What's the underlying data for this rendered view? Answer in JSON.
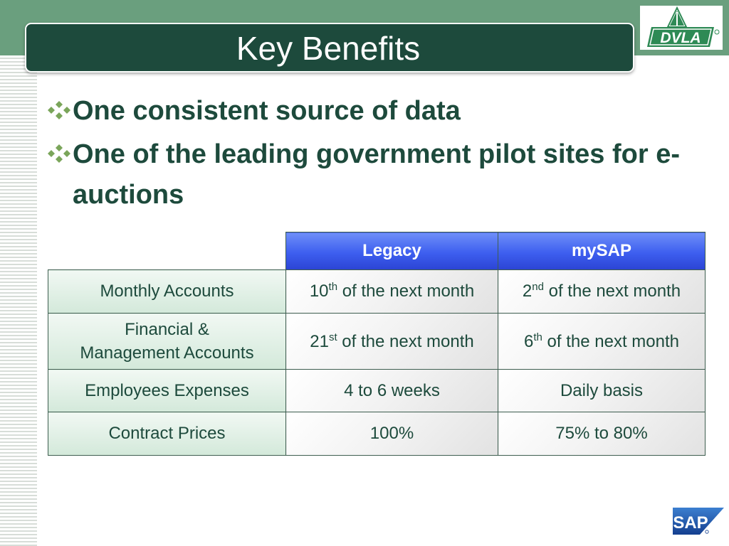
{
  "slide": {
    "title": "Key Benefits",
    "bullets": [
      "One consistent source of data",
      "One of the leading government pilot sites for e-auctions"
    ]
  },
  "logos": {
    "dvla_text": "DVLA",
    "sap_text": "SAP"
  },
  "colors": {
    "title_bar": "#1d4a3c",
    "top_band": "#6a9f7e",
    "text_green": "#1d4a3c",
    "header_blue": "#3d5eef",
    "row_head_green": "#d3e9da"
  },
  "table": {
    "headers": [
      "Legacy",
      "mySAP"
    ],
    "rows": [
      {
        "label": "Monthly Accounts",
        "legacy": {
          "num": "10",
          "sup": "th",
          "rest": " of the next month"
        },
        "mysap": {
          "num": "2",
          "sup": "nd",
          "rest": " of the next month"
        }
      },
      {
        "label_line1": "Financial &",
        "label_line2": "Management Accounts",
        "legacy": {
          "num": "21",
          "sup": "st",
          "rest": " of the next month"
        },
        "mysap": {
          "num": "6",
          "sup": "th",
          "rest": " of the next month"
        }
      },
      {
        "label": "Employees Expenses",
        "legacy": "4 to 6 weeks",
        "mysap": "Daily basis"
      },
      {
        "label": "Contract Prices",
        "legacy": "100%",
        "mysap": "75% to 80%"
      }
    ]
  }
}
